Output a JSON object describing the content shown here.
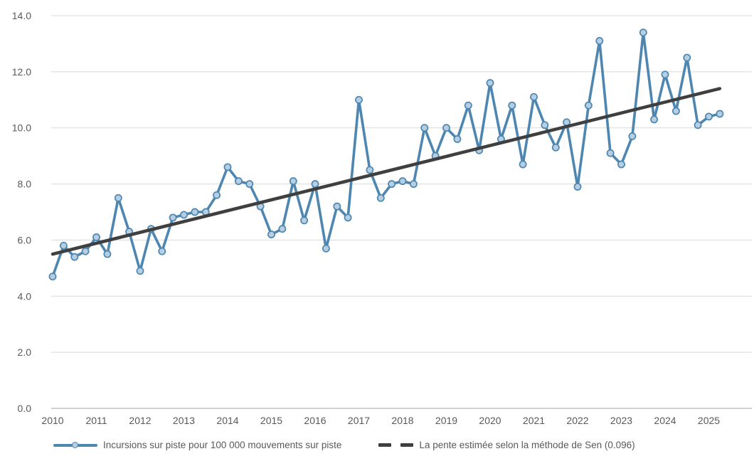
{
  "chart_data": {
    "type": "line",
    "title": "",
    "grid": true,
    "legend_position": "bottom",
    "ylim": [
      0,
      14
    ],
    "y_tick_labels": [
      "0.0",
      "2.0",
      "4.0",
      "6.0",
      "8.0",
      "10.0",
      "12.0",
      "14.0"
    ],
    "x_year_labels": [
      "2010",
      "2011",
      "2012",
      "2013",
      "2014",
      "2015",
      "2016",
      "2017",
      "2018",
      "2019",
      "2020",
      "2021",
      "2022",
      "2023",
      "2024",
      "2025"
    ],
    "points_per_year": 4,
    "x_range_note": "quarterly points from 2010 Q1 to 2025 Q2",
    "series": [
      {
        "name": "Incursions sur piste pour 100 000 mouvements sur piste",
        "type": "line-markers",
        "color": "#4d86b0",
        "marker_fill": "#b5cee2",
        "values": [
          4.7,
          5.8,
          5.4,
          5.6,
          6.1,
          5.5,
          7.5,
          6.3,
          4.9,
          6.4,
          5.6,
          6.8,
          6.9,
          7.0,
          7.0,
          7.6,
          8.6,
          8.1,
          8.0,
          7.2,
          6.2,
          6.4,
          8.1,
          6.7,
          8.0,
          5.7,
          7.2,
          6.8,
          11.0,
          8.5,
          7.5,
          8.0,
          8.1,
          8.0,
          10.0,
          9.0,
          10.0,
          9.6,
          10.8,
          9.2,
          11.6,
          9.6,
          10.8,
          8.7,
          11.1,
          10.1,
          9.3,
          10.2,
          7.9,
          10.8,
          13.1,
          9.1,
          8.7,
          9.7,
          13.4,
          10.3,
          11.9,
          10.6,
          12.5,
          10.1,
          10.4,
          10.5
        ]
      },
      {
        "name": "La pente estimée selon la méthode de Sen (0.096)",
        "type": "trend",
        "color": "#3f3f3f",
        "slope": 0.096,
        "start_value": 5.5,
        "end_value": 11.4
      }
    ]
  },
  "colors": {
    "gridline": "#d9d9d9",
    "axis_line": "#a0a0a0",
    "tick_text": "#595959",
    "background": "#ffffff"
  }
}
